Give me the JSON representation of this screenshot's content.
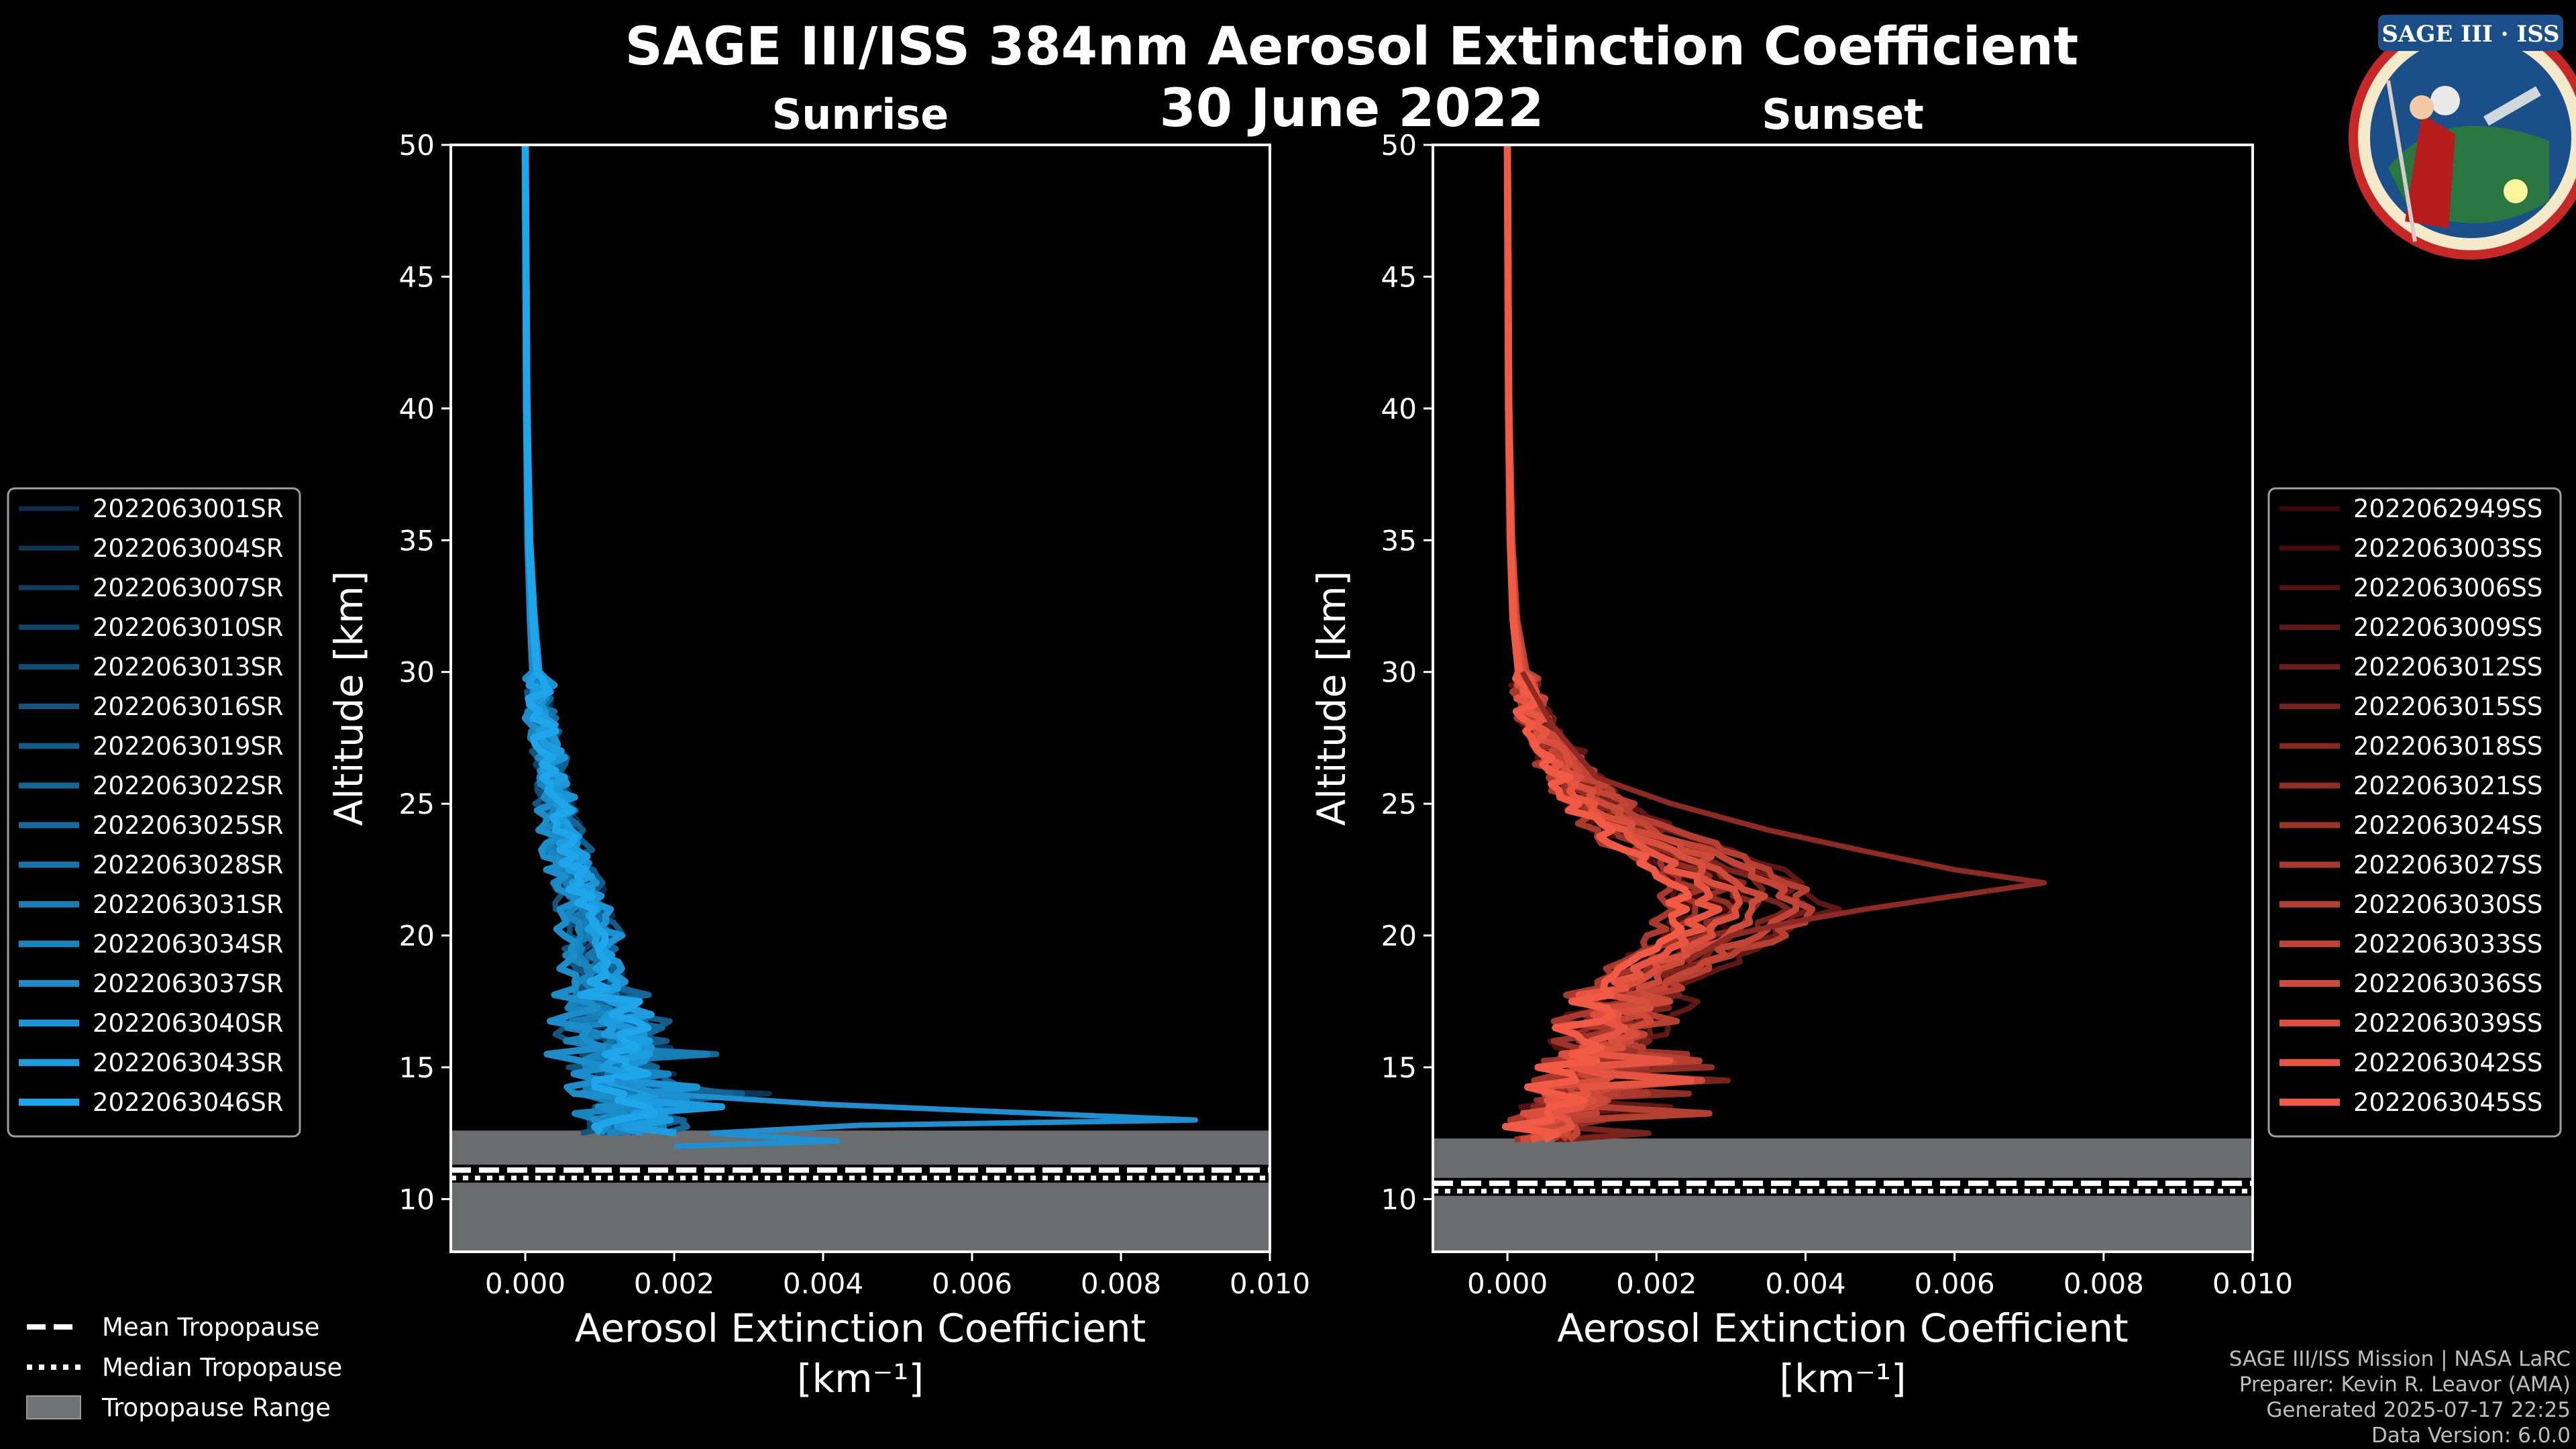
{
  "chart_data": {
    "type": "line",
    "title": "SAGE III/ISS 384nm Aerosol Extinction Coefficient",
    "date": "30 June 2022",
    "xlabel": "Aerosol Extinction Coefficient",
    "xunit": "[km⁻¹]",
    "ylabel": "Altitude [km]",
    "xlim": [
      -0.001,
      0.01
    ],
    "ylim": [
      8,
      50
    ],
    "xticks": [
      "0.000",
      "0.002",
      "0.004",
      "0.006",
      "0.008",
      "0.010"
    ],
    "xtick_values": [
      0,
      0.002,
      0.004,
      0.006,
      0.008,
      0.01
    ],
    "yticks": [
      "10",
      "15",
      "20",
      "25",
      "30",
      "35",
      "40",
      "45",
      "50"
    ],
    "ytick_values": [
      10,
      15,
      20,
      25,
      30,
      35,
      40,
      45,
      50
    ],
    "panels": [
      {
        "name": "Sunrise",
        "color_dark": "#0a2e4a",
        "color_light": "#1ea5ea",
        "tropopause_range": [
          8,
          12.6
        ],
        "mean_tropopause": 11.1,
        "median_tropopause": 10.8,
        "series_names": [
          "2022063001SR",
          "2022063004SR",
          "2022063007SR",
          "2022063010SR",
          "2022063013SR",
          "2022063016SR",
          "2022063019SR",
          "2022063022SR",
          "2022063025SR",
          "2022063028SR",
          "2022063031SR",
          "2022063034SR",
          "2022063037SR",
          "2022063040SR",
          "2022063043SR",
          "2022063046SR"
        ],
        "base_profile": {
          "altitude": [
            50,
            45,
            40,
            35,
            32,
            30,
            28,
            26,
            24,
            22,
            20,
            18,
            16.5,
            15.5,
            14.5,
            13.5,
            13,
            12.5,
            12
          ],
          "extinction": [
            0.0,
            1e-05,
            2e-05,
            5e-05,
            0.0001,
            0.00015,
            0.00025,
            0.00035,
            0.0005,
            0.0007,
            0.0009,
            0.001,
            0.0012,
            0.0011,
            0.0013,
            0.0015,
            0.0014,
            0.0012,
            0.001
          ]
        },
        "highlight": {
          "altitude": [
            14.5,
            14,
            13.6,
            13.3,
            13.0,
            12.8,
            12.5,
            12.2,
            12.0
          ],
          "extinction": [
            0.0012,
            0.0018,
            0.004,
            0.0065,
            0.009,
            0.0045,
            0.0025,
            0.0042,
            0.002
          ]
        }
      },
      {
        "name": "Sunset",
        "color_dark": "#3d0808",
        "color_light": "#f15a45",
        "tropopause_range": [
          8,
          12.3
        ],
        "mean_tropopause": 10.6,
        "median_tropopause": 10.3,
        "series_names": [
          "2022062949SS",
          "2022063003SS",
          "2022063006SS",
          "2022063009SS",
          "2022063012SS",
          "2022063015SS",
          "2022063018SS",
          "2022063021SS",
          "2022063024SS",
          "2022063027SS",
          "2022063030SS",
          "2022063033SS",
          "2022063036SS",
          "2022063039SS",
          "2022063042SS",
          "2022063045SS"
        ],
        "base_profile": {
          "altitude": [
            50,
            45,
            40,
            35,
            32,
            30,
            28,
            26,
            25,
            24,
            23,
            22,
            21,
            20,
            19,
            18,
            17,
            16,
            15,
            14,
            13,
            12.3
          ],
          "extinction": [
            0.0,
            1e-05,
            2e-05,
            5e-05,
            0.0001,
            0.0002,
            0.0004,
            0.0009,
            0.0012,
            0.0017,
            0.0024,
            0.003,
            0.0032,
            0.0028,
            0.0022,
            0.0017,
            0.0015,
            0.0013,
            0.0011,
            0.0009,
            0.0006,
            0.0005
          ]
        },
        "highlight": {
          "altitude": [
            30,
            28,
            26,
            25,
            24,
            23.2,
            22.5,
            22.0,
            21.5,
            21,
            20.5,
            20,
            19
          ],
          "extinction": [
            0.0002,
            0.0006,
            0.0012,
            0.0022,
            0.0035,
            0.0048,
            0.006,
            0.0072,
            0.006,
            0.0048,
            0.0038,
            0.003,
            0.0024
          ]
        }
      }
    ]
  },
  "legend_tropopause": {
    "mean": "Mean Tropopause",
    "median": "Median Tropopause",
    "range": "Tropopause Range"
  },
  "credits": {
    "line1": "SAGE III/ISS Mission | NASA LaRC",
    "line2": "Preparer: Kevin R. Leavor (AMA)",
    "line3": "Generated 2025-07-17 22:25",
    "line4": "Data Version: 6.0.0"
  },
  "logo": {
    "text": "SAGE III · ISS"
  },
  "colors": {
    "background": "#000000",
    "tropopause_fill": "#707273",
    "axis": "#ffffff"
  }
}
